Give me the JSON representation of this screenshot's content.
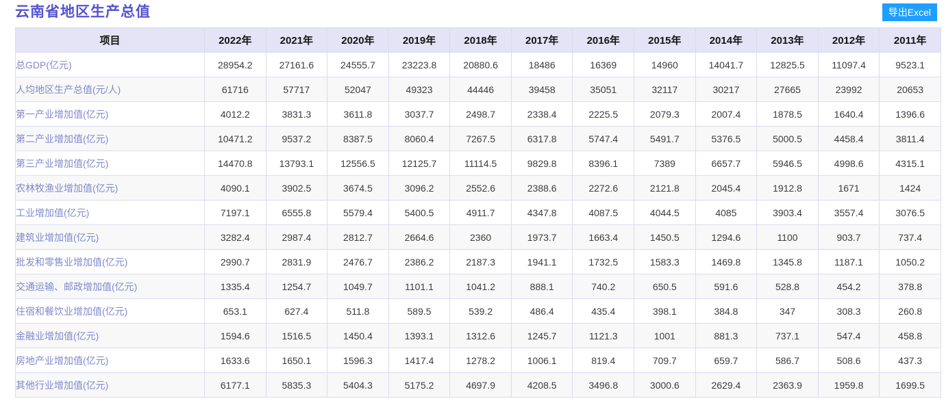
{
  "page": {
    "title": "云南省地区生产总值",
    "export_button_label": "导出Excel"
  },
  "colors": {
    "title_text": "#5353d1",
    "export_button_bg": "#1e9fff",
    "export_button_text": "#ffffff",
    "table_header_bg": "#e4e4f6",
    "table_border": "#dbdbf1",
    "row_label_text": "#8089cd",
    "data_text": "#3c3c3c",
    "stripe_row_bg": "#f8f8f8"
  },
  "table": {
    "item_column_header": "项目",
    "year_columns": [
      "2022年",
      "2021年",
      "2020年",
      "2019年",
      "2018年",
      "2017年",
      "2016年",
      "2015年",
      "2014年",
      "2013年",
      "2012年",
      "2011年"
    ],
    "rows": [
      {
        "label": "总GDP(亿元)",
        "values": [
          "28954.2",
          "27161.6",
          "24555.7",
          "23223.8",
          "20880.6",
          "18486",
          "16369",
          "14960",
          "14041.7",
          "12825.5",
          "11097.4",
          "9523.1"
        ]
      },
      {
        "label": "人均地区生产总值(元/人)",
        "values": [
          "61716",
          "57717",
          "52047",
          "49323",
          "44446",
          "39458",
          "35051",
          "32117",
          "30217",
          "27665",
          "23992",
          "20653"
        ]
      },
      {
        "label": "第一产业增加值(亿元)",
        "values": [
          "4012.2",
          "3831.3",
          "3611.8",
          "3037.7",
          "2498.7",
          "2338.4",
          "2225.5",
          "2079.3",
          "2007.4",
          "1878.5",
          "1640.4",
          "1396.6"
        ]
      },
      {
        "label": "第二产业增加值(亿元)",
        "values": [
          "10471.2",
          "9537.2",
          "8387.5",
          "8060.4",
          "7267.5",
          "6317.8",
          "5747.4",
          "5491.7",
          "5376.5",
          "5000.5",
          "4458.4",
          "3811.4"
        ]
      },
      {
        "label": "第三产业增加值(亿元)",
        "values": [
          "14470.8",
          "13793.1",
          "12556.5",
          "12125.7",
          "11114.5",
          "9829.8",
          "8396.1",
          "7389",
          "6657.7",
          "5946.5",
          "4998.6",
          "4315.1"
        ]
      },
      {
        "label": "农林牧渔业增加值(亿元)",
        "values": [
          "4090.1",
          "3902.5",
          "3674.5",
          "3096.2",
          "2552.6",
          "2388.6",
          "2272.6",
          "2121.8",
          "2045.4",
          "1912.8",
          "1671",
          "1424"
        ]
      },
      {
        "label": "工业增加值(亿元)",
        "values": [
          "7197.1",
          "6555.8",
          "5579.4",
          "5400.5",
          "4911.7",
          "4347.8",
          "4087.5",
          "4044.5",
          "4085",
          "3903.4",
          "3557.4",
          "3076.5"
        ]
      },
      {
        "label": "建筑业增加值(亿元)",
        "values": [
          "3282.4",
          "2987.4",
          "2812.7",
          "2664.6",
          "2360",
          "1973.7",
          "1663.4",
          "1450.5",
          "1294.6",
          "1100",
          "903.7",
          "737.4"
        ]
      },
      {
        "label": "批发和零售业增加值(亿元)",
        "values": [
          "2990.7",
          "2831.9",
          "2476.7",
          "2386.2",
          "2187.3",
          "1941.1",
          "1732.5",
          "1583.3",
          "1469.8",
          "1345.8",
          "1187.1",
          "1050.2"
        ]
      },
      {
        "label": "交通运输、邮政增加值(亿元)",
        "values": [
          "1335.4",
          "1254.7",
          "1049.7",
          "1101.1",
          "1041.2",
          "888.1",
          "740.2",
          "650.5",
          "591.6",
          "528.8",
          "454.2",
          "378.8"
        ]
      },
      {
        "label": "住宿和餐饮业增加值(亿元)",
        "values": [
          "653.1",
          "627.4",
          "511.8",
          "589.5",
          "539.2",
          "486.4",
          "435.4",
          "398.1",
          "384.8",
          "347",
          "308.3",
          "260.8"
        ]
      },
      {
        "label": "金融业增加值(亿元)",
        "values": [
          "1594.6",
          "1516.5",
          "1450.4",
          "1393.1",
          "1312.6",
          "1245.7",
          "1121.3",
          "1001",
          "881.3",
          "737.1",
          "547.4",
          "458.8"
        ]
      },
      {
        "label": "房地产业增加值(亿元)",
        "values": [
          "1633.6",
          "1650.1",
          "1596.3",
          "1417.4",
          "1278.2",
          "1006.1",
          "819.4",
          "709.7",
          "659.7",
          "586.7",
          "508.6",
          "437.3"
        ]
      },
      {
        "label": "其他行业增加值(亿元)",
        "values": [
          "6177.1",
          "5835.3",
          "5404.3",
          "5175.2",
          "4697.9",
          "4208.5",
          "3496.8",
          "3000.6",
          "2629.4",
          "2363.9",
          "1959.8",
          "1699.5"
        ]
      }
    ]
  }
}
